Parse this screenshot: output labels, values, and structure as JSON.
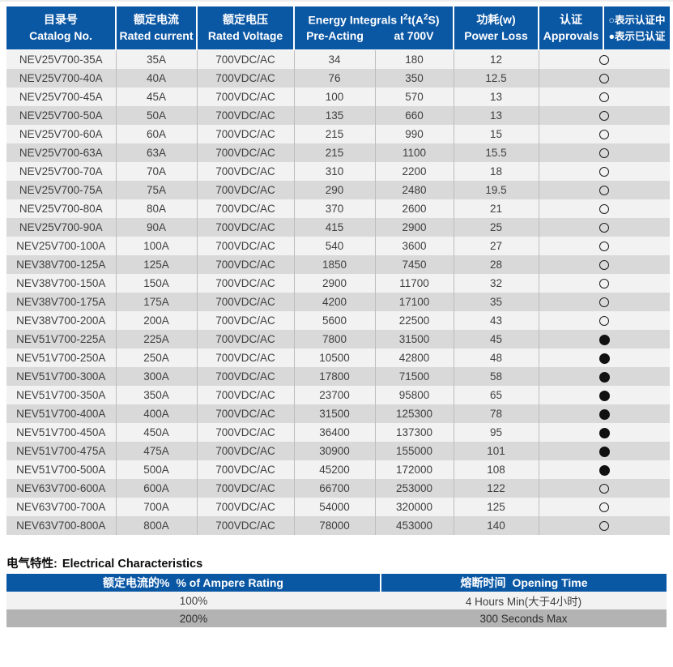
{
  "colors": {
    "header_blue": "#0a57a4",
    "row_light": "#f2f2f2",
    "row_dark": "#d9d9d9",
    "row_darker": "#b3b3b3",
    "header_text": "#ffffff",
    "body_text": "#3f3f3f"
  },
  "main_table": {
    "headers": {
      "catalog": {
        "zh": "目录号",
        "en": "Catalog No."
      },
      "current": {
        "zh": "额定电流",
        "en": "Rated current"
      },
      "voltage": {
        "zh": "额定电压",
        "en": "Rated Voltage"
      },
      "energy": {
        "part1": "Energy Integrals I",
        "sup1": "2",
        "part2": "t(A",
        "sup2": "2",
        "part3": "S)",
        "sub_pre": "Pre-Acting",
        "sub_700": "at 700V"
      },
      "power": {
        "zh": "功耗(w)",
        "en": "Power Loss"
      },
      "approvals": {
        "zh": "认证",
        "en": "Approvals"
      },
      "legend": {
        "line1": "○表示认证中",
        "line2": "●表示已认证"
      }
    },
    "rows": [
      {
        "catalog": "NEV25V700-35A",
        "current": "35A",
        "voltage": "700VDC/AC",
        "pre_acting": "34",
        "at_700v": "180",
        "power_loss": "12",
        "approval": "pending"
      },
      {
        "catalog": "NEV25V700-40A",
        "current": "40A",
        "voltage": "700VDC/AC",
        "pre_acting": "76",
        "at_700v": "350",
        "power_loss": "12.5",
        "approval": "pending"
      },
      {
        "catalog": "NEV25V700-45A",
        "current": "45A",
        "voltage": "700VDC/AC",
        "pre_acting": "100",
        "at_700v": "570",
        "power_loss": "13",
        "approval": "pending"
      },
      {
        "catalog": "NEV25V700-50A",
        "current": "50A",
        "voltage": "700VDC/AC",
        "pre_acting": "135",
        "at_700v": "660",
        "power_loss": "13",
        "approval": "pending"
      },
      {
        "catalog": "NEV25V700-60A",
        "current": "60A",
        "voltage": "700VDC/AC",
        "pre_acting": "215",
        "at_700v": "990",
        "power_loss": "15",
        "approval": "pending"
      },
      {
        "catalog": "NEV25V700-63A",
        "current": "63A",
        "voltage": "700VDC/AC",
        "pre_acting": "215",
        "at_700v": "1100",
        "power_loss": "15.5",
        "approval": "pending"
      },
      {
        "catalog": "NEV25V700-70A",
        "current": "70A",
        "voltage": "700VDC/AC",
        "pre_acting": "310",
        "at_700v": "2200",
        "power_loss": "18",
        "approval": "pending"
      },
      {
        "catalog": "NEV25V700-75A",
        "current": "75A",
        "voltage": "700VDC/AC",
        "pre_acting": "290",
        "at_700v": "2480",
        "power_loss": "19.5",
        "approval": "pending"
      },
      {
        "catalog": "NEV25V700-80A",
        "current": "80A",
        "voltage": "700VDC/AC",
        "pre_acting": "370",
        "at_700v": "2600",
        "power_loss": "21",
        "approval": "pending"
      },
      {
        "catalog": "NEV25V700-90A",
        "current": "90A",
        "voltage": "700VDC/AC",
        "pre_acting": "415",
        "at_700v": "2900",
        "power_loss": "25",
        "approval": "pending"
      },
      {
        "catalog": "NEV25V700-100A",
        "current": "100A",
        "voltage": "700VDC/AC",
        "pre_acting": "540",
        "at_700v": "3600",
        "power_loss": "27",
        "approval": "pending"
      },
      {
        "catalog": "NEV38V700-125A",
        "current": "125A",
        "voltage": "700VDC/AC",
        "pre_acting": "1850",
        "at_700v": "7450",
        "power_loss": "28",
        "approval": "pending"
      },
      {
        "catalog": "NEV38V700-150A",
        "current": "150A",
        "voltage": "700VDC/AC",
        "pre_acting": "2900",
        "at_700v": "11700",
        "power_loss": "32",
        "approval": "pending"
      },
      {
        "catalog": "NEV38V700-175A",
        "current": "175A",
        "voltage": "700VDC/AC",
        "pre_acting": "4200",
        "at_700v": "17100",
        "power_loss": "35",
        "approval": "pending"
      },
      {
        "catalog": "NEV38V700-200A",
        "current": "200A",
        "voltage": "700VDC/AC",
        "pre_acting": "5600",
        "at_700v": "22500",
        "power_loss": "43",
        "approval": "pending"
      },
      {
        "catalog": "NEV51V700-225A",
        "current": "225A",
        "voltage": "700VDC/AC",
        "pre_acting": "7800",
        "at_700v": "31500",
        "power_loss": "45",
        "approval": "certified"
      },
      {
        "catalog": "NEV51V700-250A",
        "current": "250A",
        "voltage": "700VDC/AC",
        "pre_acting": "10500",
        "at_700v": "42800",
        "power_loss": "48",
        "approval": "certified"
      },
      {
        "catalog": "NEV51V700-300A",
        "current": "300A",
        "voltage": "700VDC/AC",
        "pre_acting": "17800",
        "at_700v": "71500",
        "power_loss": "58",
        "approval": "certified"
      },
      {
        "catalog": "NEV51V700-350A",
        "current": "350A",
        "voltage": "700VDC/AC",
        "pre_acting": "23700",
        "at_700v": "95800",
        "power_loss": "65",
        "approval": "certified"
      },
      {
        "catalog": "NEV51V700-400A",
        "current": "400A",
        "voltage": "700VDC/AC",
        "pre_acting": "31500",
        "at_700v": "125300",
        "power_loss": "78",
        "approval": "certified"
      },
      {
        "catalog": "NEV51V700-450A",
        "current": "450A",
        "voltage": "700VDC/AC",
        "pre_acting": "36400",
        "at_700v": "137300",
        "power_loss": "95",
        "approval": "certified"
      },
      {
        "catalog": "NEV51V700-475A",
        "current": "475A",
        "voltage": "700VDC/AC",
        "pre_acting": "30900",
        "at_700v": "155000",
        "power_loss": "101",
        "approval": "certified"
      },
      {
        "catalog": "NEV51V700-500A",
        "current": "500A",
        "voltage": "700VDC/AC",
        "pre_acting": "45200",
        "at_700v": "172000",
        "power_loss": "108",
        "approval": "certified"
      },
      {
        "catalog": "NEV63V700-600A",
        "current": "600A",
        "voltage": "700VDC/AC",
        "pre_acting": "66700",
        "at_700v": "253000",
        "power_loss": "122",
        "approval": "pending"
      },
      {
        "catalog": "NEV63V700-700A",
        "current": "700A",
        "voltage": "700VDC/AC",
        "pre_acting": "54000",
        "at_700v": "320000",
        "power_loss": "125",
        "approval": "pending"
      },
      {
        "catalog": "NEV63V700-800A",
        "current": "800A",
        "voltage": "700VDC/AC",
        "pre_acting": "78000",
        "at_700v": "453000",
        "power_loss": "140",
        "approval": "pending"
      }
    ]
  },
  "section": {
    "title_zh": "电气特性:",
    "title_en": "Electrical Characteristics"
  },
  "characteristics_table": {
    "headers": {
      "rating_zh": "额定电流的%",
      "rating_en": "% of Ampere Rating",
      "opening_zh": "熔断时间",
      "opening_en": "Opening Time"
    },
    "rows": [
      {
        "rating": "100%",
        "opening": "4 Hours Min(大于4小时)"
      },
      {
        "rating": "200%",
        "opening": "300 Seconds Max"
      }
    ]
  }
}
